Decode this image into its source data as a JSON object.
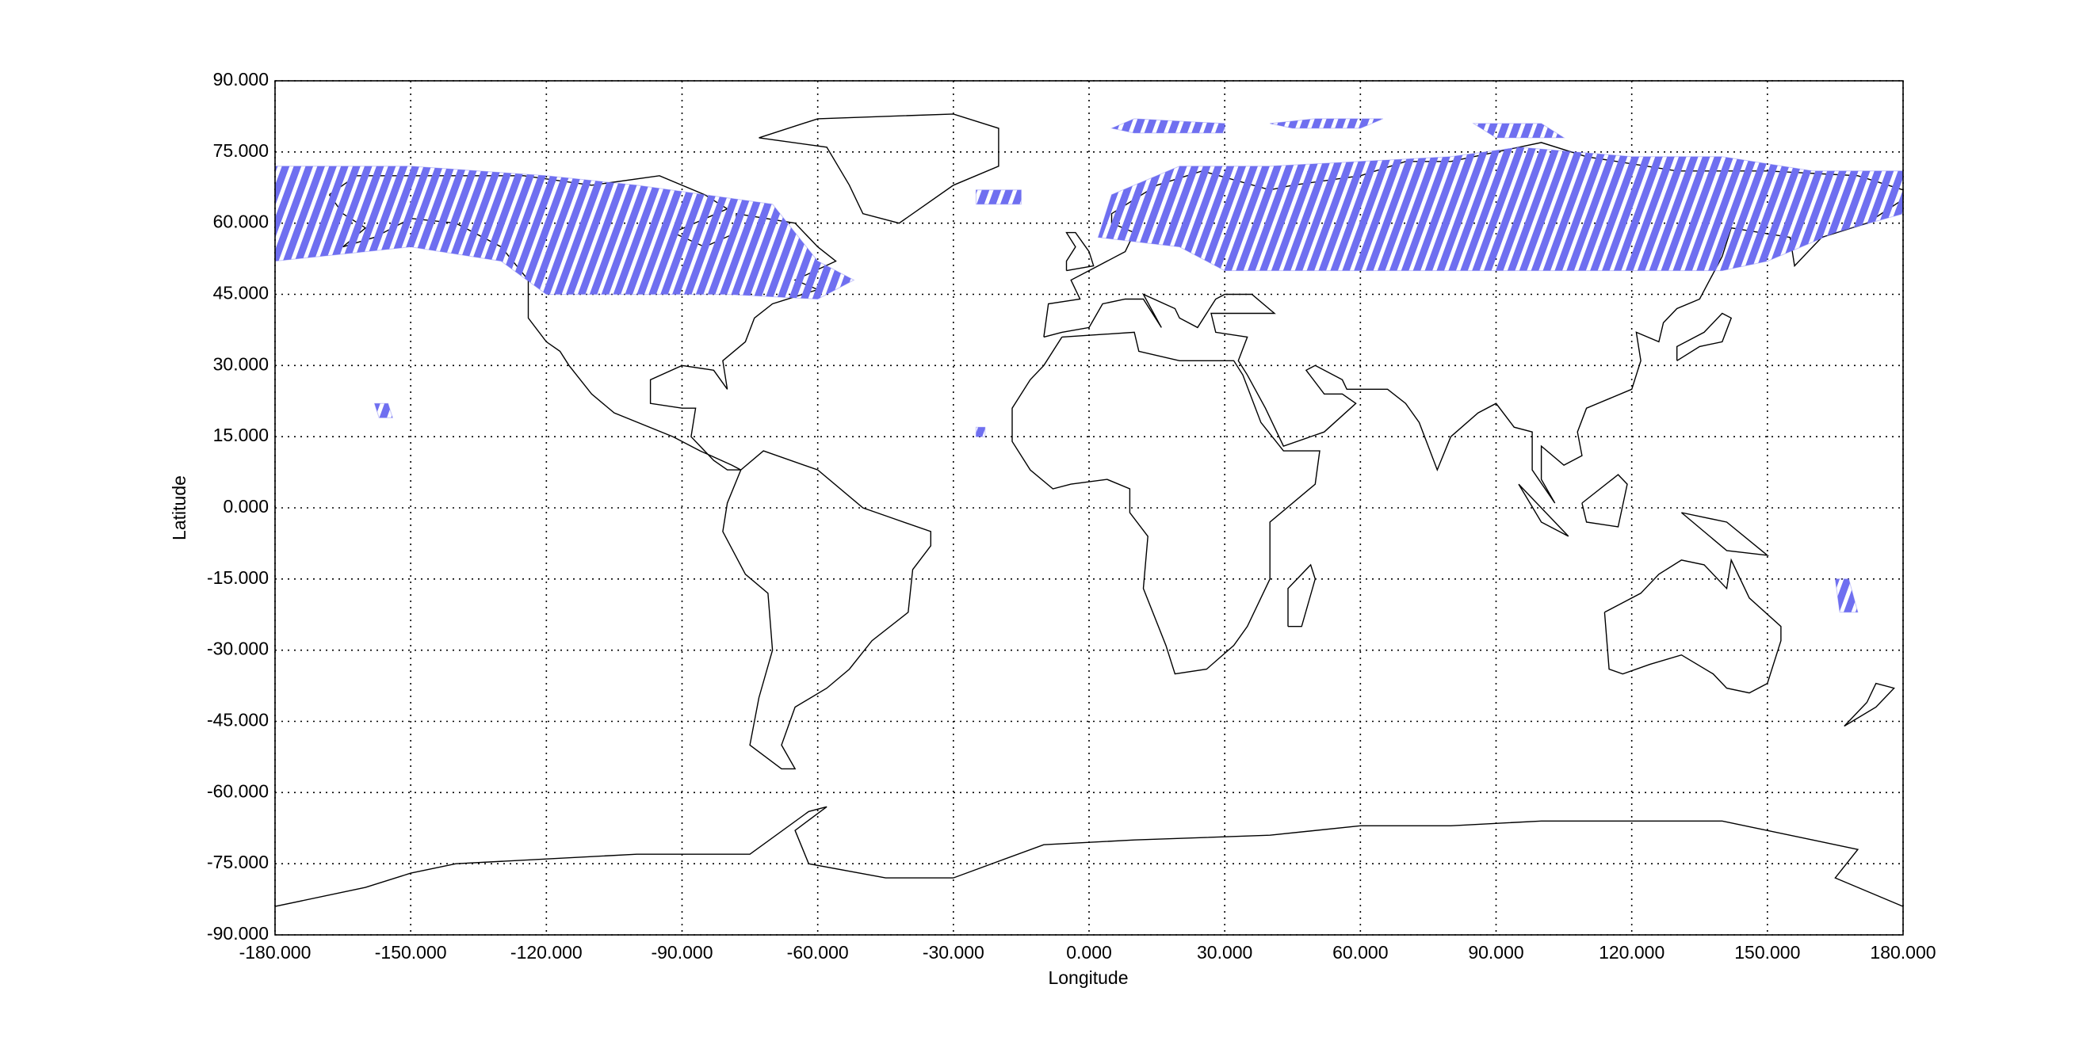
{
  "chart_data": {
    "type": "map",
    "xlabel": "Longitude",
    "ylabel": "Latitude",
    "xlim": [
      -180,
      180
    ],
    "ylim": [
      -90,
      90
    ],
    "xticks": [
      {
        "value": -180,
        "label": "-180.000"
      },
      {
        "value": -150,
        "label": "-150.000"
      },
      {
        "value": -120,
        "label": "-120.000"
      },
      {
        "value": -90,
        "label": "-90.000"
      },
      {
        "value": -60,
        "label": "-60.000"
      },
      {
        "value": -30,
        "label": "-30.000"
      },
      {
        "value": 0,
        "label": "0.000"
      },
      {
        "value": 30,
        "label": "30.000"
      },
      {
        "value": 60,
        "label": "60.000"
      },
      {
        "value": 90,
        "label": "90.000"
      },
      {
        "value": 120,
        "label": "120.000"
      },
      {
        "value": 150,
        "label": "150.000"
      },
      {
        "value": 180,
        "label": "180.000"
      }
    ],
    "yticks": [
      {
        "value": 90,
        "label": "90.000"
      },
      {
        "value": 75,
        "label": "75.000"
      },
      {
        "value": 60,
        "label": "60.000"
      },
      {
        "value": 45,
        "label": "45.000"
      },
      {
        "value": 30,
        "label": "30.000"
      },
      {
        "value": 15,
        "label": "15.000"
      },
      {
        "value": 0,
        "label": "0.000"
      },
      {
        "value": -15,
        "label": "-15.000"
      },
      {
        "value": -30,
        "label": "-30.000"
      },
      {
        "value": -45,
        "label": "-45.000"
      },
      {
        "value": -60,
        "label": "-60.000"
      },
      {
        "value": -75,
        "label": "-75.000"
      },
      {
        "value": -90,
        "label": "-90.000"
      }
    ],
    "grid": true,
    "color": "#6f6ff0",
    "regions": [
      {
        "lon": [
          -180,
          -180,
          -150,
          -120,
          -100,
          -70,
          -60,
          -52,
          -60,
          -80,
          -120,
          -130,
          -150,
          -170,
          -180
        ],
        "lat": [
          62,
          72,
          72,
          70,
          68,
          64,
          52,
          48,
          44,
          45,
          45,
          52,
          55,
          53,
          52
        ]
      },
      {
        "lon": [
          2,
          5,
          20,
          40,
          60,
          80,
          95,
          120,
          140,
          160,
          180,
          180,
          165,
          150,
          140,
          120,
          90,
          60,
          30,
          20,
          2
        ],
        "lat": [
          57,
          66,
          72,
          72,
          73,
          74,
          76,
          74,
          74,
          71,
          71,
          62,
          58,
          52,
          50,
          50,
          50,
          50,
          50,
          55,
          57
        ]
      },
      {
        "lon": [
          5,
          10,
          30,
          30,
          10
        ],
        "lat": [
          80,
          82,
          81,
          79,
          79
        ]
      },
      {
        "lon": [
          40,
          50,
          65,
          60,
          45
        ],
        "lat": [
          81,
          82,
          82,
          80,
          80
        ]
      },
      {
        "lon": [
          85,
          100,
          105,
          90
        ],
        "lat": [
          81,
          81,
          78,
          78
        ]
      },
      {
        "lon": [
          -25,
          -15,
          -15,
          -25
        ],
        "lat": [
          67,
          67,
          64,
          64
        ]
      },
      {
        "lon": [
          -158,
          -155,
          -154,
          -157
        ],
        "lat": [
          22,
          22,
          19,
          19
        ]
      },
      {
        "lon": [
          -25,
          -23,
          -23,
          -25
        ],
        "lat": [
          17,
          17,
          15,
          15
        ]
      },
      {
        "lon": [
          165,
          168,
          170,
          166
        ],
        "lat": [
          -15,
          -15,
          -22,
          -22
        ]
      }
    ]
  }
}
